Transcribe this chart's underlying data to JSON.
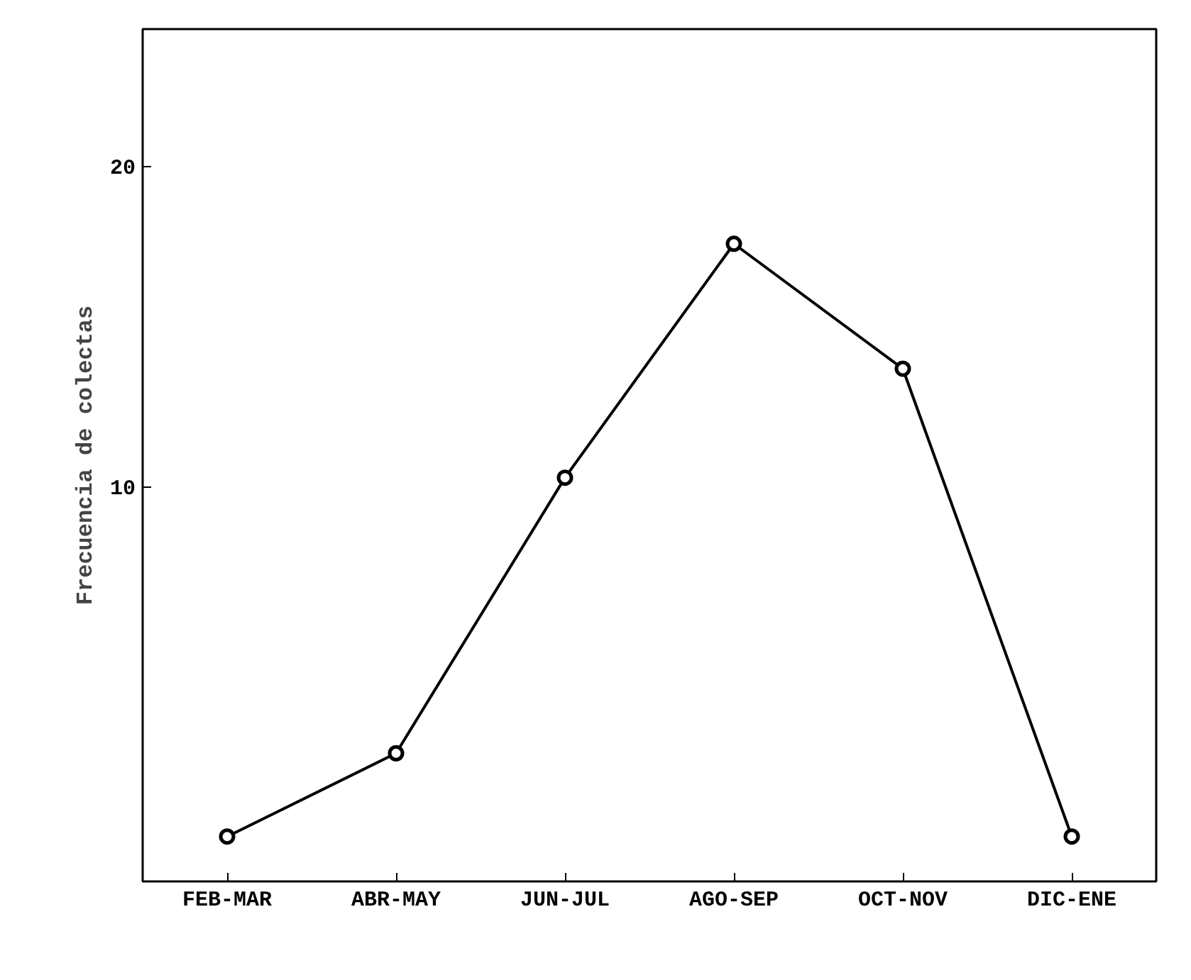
{
  "chart_data": {
    "type": "line",
    "ylabel": "Frecuencia de colectas",
    "categories": [
      "FEB-MAR",
      "ABR-MAY",
      "JUN-JUL",
      "AGO-SEP",
      "OCT-NOV",
      "DIC-ENE"
    ],
    "ylim": [
      -2.3,
      24.3
    ],
    "yticks": [
      10,
      20
    ],
    "grid": false,
    "marker": "circle",
    "series": [
      {
        "color": "#000000",
        "values": [
          -0.9,
          1.7,
          10.3,
          17.6,
          13.7,
          -0.9
        ]
      }
    ]
  }
}
